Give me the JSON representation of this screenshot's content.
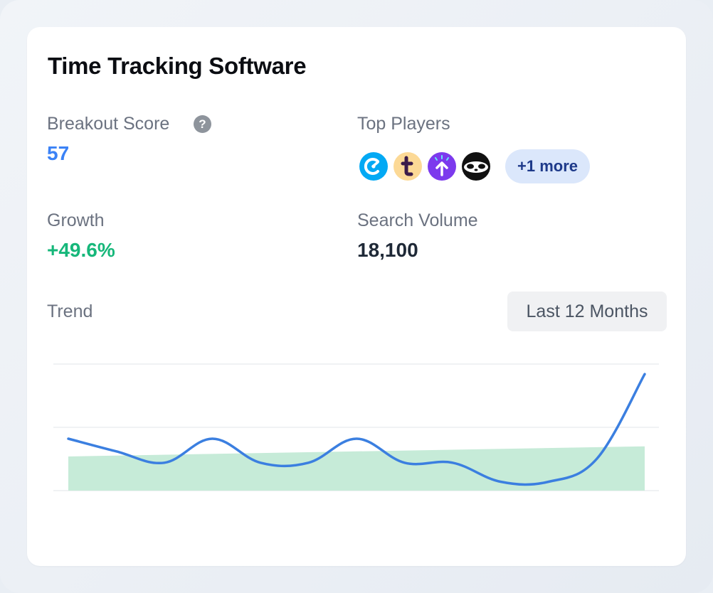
{
  "card": {
    "title": "Time Tracking Software",
    "breakout": {
      "label": "Breakout Score",
      "value": "57",
      "help_icon": "question-mark",
      "color": "#3b82f6"
    },
    "top_players": {
      "label": "Top Players",
      "logos": [
        "clockify-logo",
        "tmetric-logo",
        "upwork-arrow-logo",
        "sloth-logo"
      ],
      "more_label": "+1 more"
    },
    "growth": {
      "label": "Growth",
      "value": "+49.6%",
      "color": "#16b77a"
    },
    "search_volume": {
      "label": "Search Volume",
      "value": "18,100"
    },
    "trend": {
      "label": "Trend",
      "range_button": "Last 12 Months"
    }
  },
  "chart_data": {
    "type": "line",
    "title": "",
    "xlabel": "",
    "ylabel": "",
    "ylim": [
      0,
      100
    ],
    "grid": true,
    "series": [
      {
        "values": [
          41,
          31,
          22,
          41,
          22,
          22,
          41,
          22,
          22,
          7,
          7,
          25,
          92
        ],
        "color": "#3b7fe0"
      },
      {
        "values": [
          27,
          35
        ],
        "color": "#c6ebd8"
      }
    ]
  }
}
